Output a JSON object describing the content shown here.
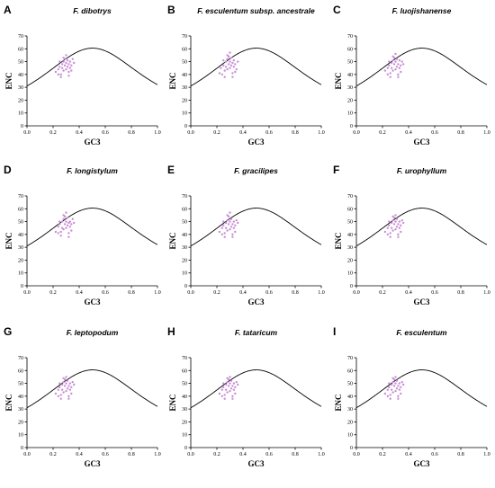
{
  "figure": {
    "point_color": "#c98fd6",
    "curve_color": "#000000"
  },
  "chart_data": [
    {
      "type": "scatter",
      "panel": "A",
      "title": "F. dibotrys",
      "xlabel": "GC3",
      "ylabel": "ENC",
      "xlim": [
        0.0,
        1.0
      ],
      "ylim": [
        0,
        70
      ],
      "xticks": [
        "0.0",
        "0.2",
        "0.4",
        "0.6",
        "0.8",
        "1.0"
      ],
      "yticks": [
        "0",
        "10",
        "20",
        "30",
        "40",
        "50",
        "60",
        "70"
      ],
      "expected_curve": "ENC = 2 + GC3 + 29/(GC3^2 + (1-GC3)^2)",
      "points": [
        [
          0.22,
          42
        ],
        [
          0.24,
          44
        ],
        [
          0.25,
          46
        ],
        [
          0.26,
          40
        ],
        [
          0.27,
          48
        ],
        [
          0.27,
          45
        ],
        [
          0.28,
          50
        ],
        [
          0.28,
          43
        ],
        [
          0.29,
          47
        ],
        [
          0.29,
          52
        ],
        [
          0.3,
          44
        ],
        [
          0.3,
          49
        ],
        [
          0.31,
          46
        ],
        [
          0.31,
          51
        ],
        [
          0.32,
          48
        ],
        [
          0.32,
          42
        ],
        [
          0.33,
          50
        ],
        [
          0.33,
          45
        ],
        [
          0.34,
          47
        ],
        [
          0.35,
          52
        ],
        [
          0.26,
          38
        ],
        [
          0.3,
          55
        ],
        [
          0.32,
          39
        ],
        [
          0.24,
          40
        ],
        [
          0.36,
          49
        ],
        [
          0.28,
          53
        ],
        [
          0.25,
          50
        ],
        [
          0.34,
          43
        ]
      ]
    },
    {
      "type": "scatter",
      "panel": "B",
      "title": "F. esculentum subsp. ancestrale",
      "xlabel": "GC3",
      "ylabel": "ENC",
      "xlim": [
        0.0,
        1.0
      ],
      "ylim": [
        0,
        70
      ],
      "xticks": [
        "0.0",
        "0.2",
        "0.4",
        "0.6",
        "0.8",
        "1.0"
      ],
      "yticks": [
        "0",
        "10",
        "20",
        "30",
        "40",
        "50",
        "60",
        "70"
      ],
      "expected_curve": "ENC = 2 + GC3 + 29/(GC3^2 + (1-GC3)^2)",
      "points": [
        [
          0.22,
          41
        ],
        [
          0.23,
          45
        ],
        [
          0.25,
          47
        ],
        [
          0.26,
          43
        ],
        [
          0.27,
          50
        ],
        [
          0.27,
          46
        ],
        [
          0.28,
          52
        ],
        [
          0.28,
          44
        ],
        [
          0.29,
          48
        ],
        [
          0.29,
          54
        ],
        [
          0.3,
          45
        ],
        [
          0.3,
          50
        ],
        [
          0.31,
          47
        ],
        [
          0.31,
          53
        ],
        [
          0.32,
          49
        ],
        [
          0.32,
          41
        ],
        [
          0.33,
          51
        ],
        [
          0.33,
          46
        ],
        [
          0.34,
          48
        ],
        [
          0.35,
          44
        ],
        [
          0.26,
          38
        ],
        [
          0.3,
          57
        ],
        [
          0.32,
          38
        ],
        [
          0.24,
          40
        ],
        [
          0.36,
          50
        ],
        [
          0.28,
          55
        ],
        [
          0.25,
          51
        ],
        [
          0.34,
          42
        ]
      ]
    },
    {
      "type": "scatter",
      "panel": "C",
      "title": "F. luojishanense",
      "xlabel": "GC3",
      "ylabel": "ENC",
      "xlim": [
        0.0,
        1.0
      ],
      "ylim": [
        0,
        70
      ],
      "xticks": [
        "0.0",
        "0.2",
        "0.4",
        "0.6",
        "0.8",
        "1.0"
      ],
      "yticks": [
        "0",
        "10",
        "20",
        "30",
        "40",
        "50",
        "60",
        "70"
      ],
      "expected_curve": "ENC = 2 + GC3 + 29/(GC3^2 + (1-GC3)^2)",
      "points": [
        [
          0.22,
          43
        ],
        [
          0.24,
          45
        ],
        [
          0.25,
          47
        ],
        [
          0.26,
          41
        ],
        [
          0.27,
          49
        ],
        [
          0.27,
          45
        ],
        [
          0.28,
          51
        ],
        [
          0.28,
          43
        ],
        [
          0.29,
          48
        ],
        [
          0.29,
          53
        ],
        [
          0.3,
          44
        ],
        [
          0.3,
          50
        ],
        [
          0.31,
          46
        ],
        [
          0.31,
          52
        ],
        [
          0.32,
          48
        ],
        [
          0.32,
          40
        ],
        [
          0.33,
          51
        ],
        [
          0.33,
          45
        ],
        [
          0.34,
          47
        ],
        [
          0.35,
          50
        ],
        [
          0.26,
          38
        ],
        [
          0.3,
          56
        ],
        [
          0.32,
          38
        ],
        [
          0.24,
          40
        ],
        [
          0.36,
          48
        ],
        [
          0.28,
          54
        ],
        [
          0.25,
          50
        ],
        [
          0.34,
          42
        ]
      ]
    },
    {
      "type": "scatter",
      "panel": "D",
      "title": "F. longistylum",
      "xlabel": "GC3",
      "ylabel": "ENC",
      "xlim": [
        0.0,
        1.0
      ],
      "ylim": [
        0,
        70
      ],
      "xticks": [
        "0.0",
        "0.2",
        "0.4",
        "0.6",
        "0.8",
        "1.0"
      ],
      "yticks": [
        "0",
        "10",
        "20",
        "30",
        "40",
        "50",
        "60",
        "70"
      ],
      "expected_curve": "ENC = 2 + GC3 + 29/(GC3^2 + (1-GC3)^2)",
      "points": [
        [
          0.22,
          42
        ],
        [
          0.24,
          46
        ],
        [
          0.25,
          48
        ],
        [
          0.26,
          42
        ],
        [
          0.27,
          50
        ],
        [
          0.27,
          45
        ],
        [
          0.28,
          52
        ],
        [
          0.28,
          44
        ],
        [
          0.29,
          48
        ],
        [
          0.29,
          54
        ],
        [
          0.3,
          45
        ],
        [
          0.3,
          50
        ],
        [
          0.31,
          47
        ],
        [
          0.31,
          53
        ],
        [
          0.32,
          49
        ],
        [
          0.32,
          41
        ],
        [
          0.33,
          50
        ],
        [
          0.33,
          46
        ],
        [
          0.34,
          48
        ],
        [
          0.35,
          52
        ],
        [
          0.26,
          39
        ],
        [
          0.3,
          57
        ],
        [
          0.32,
          38
        ],
        [
          0.24,
          41
        ],
        [
          0.36,
          49
        ],
        [
          0.28,
          55
        ],
        [
          0.25,
          50
        ],
        [
          0.34,
          43
        ]
      ]
    },
    {
      "type": "scatter",
      "panel": "E",
      "title": "F. gracilipes",
      "xlabel": "GC3",
      "ylabel": "ENC",
      "xlim": [
        0.0,
        1.0
      ],
      "ylim": [
        0,
        70
      ],
      "xticks": [
        "0.0",
        "0.2",
        "0.4",
        "0.6",
        "0.8",
        "1.0"
      ],
      "yticks": [
        "0",
        "10",
        "20",
        "30",
        "40",
        "50",
        "60",
        "70"
      ],
      "expected_curve": "ENC = 2 + GC3 + 29/(GC3^2 + (1-GC3)^2)",
      "points": [
        [
          0.22,
          42
        ],
        [
          0.24,
          45
        ],
        [
          0.25,
          47
        ],
        [
          0.26,
          41
        ],
        [
          0.27,
          49
        ],
        [
          0.27,
          45
        ],
        [
          0.28,
          51
        ],
        [
          0.28,
          43
        ],
        [
          0.29,
          48
        ],
        [
          0.29,
          54
        ],
        [
          0.3,
          44
        ],
        [
          0.3,
          50
        ],
        [
          0.31,
          46
        ],
        [
          0.31,
          52
        ],
        [
          0.32,
          48
        ],
        [
          0.32,
          40
        ],
        [
          0.33,
          50
        ],
        [
          0.33,
          45
        ],
        [
          0.34,
          47
        ],
        [
          0.35,
          51
        ],
        [
          0.26,
          38
        ],
        [
          0.3,
          57
        ],
        [
          0.32,
          38
        ],
        [
          0.24,
          40
        ],
        [
          0.36,
          49
        ],
        [
          0.28,
          55
        ],
        [
          0.25,
          50
        ],
        [
          0.34,
          42
        ]
      ]
    },
    {
      "type": "scatter",
      "panel": "F",
      "title": "F. urophyllum",
      "xlabel": "GC3",
      "ylabel": "ENC",
      "xlim": [
        0.0,
        1.0
      ],
      "ylim": [
        0,
        70
      ],
      "xticks": [
        "0.0",
        "0.2",
        "0.4",
        "0.6",
        "0.8",
        "1.0"
      ],
      "yticks": [
        "0",
        "10",
        "20",
        "30",
        "40",
        "50",
        "60",
        "70"
      ],
      "expected_curve": "ENC = 2 + GC3 + 29/(GC3^2 + (1-GC3)^2)",
      "points": [
        [
          0.22,
          42
        ],
        [
          0.24,
          45
        ],
        [
          0.25,
          47
        ],
        [
          0.26,
          41
        ],
        [
          0.27,
          49
        ],
        [
          0.27,
          45
        ],
        [
          0.28,
          51
        ],
        [
          0.28,
          43
        ],
        [
          0.29,
          48
        ],
        [
          0.29,
          53
        ],
        [
          0.3,
          44
        ],
        [
          0.3,
          50
        ],
        [
          0.31,
          46
        ],
        [
          0.31,
          52
        ],
        [
          0.32,
          48
        ],
        [
          0.32,
          40
        ],
        [
          0.33,
          50
        ],
        [
          0.33,
          45
        ],
        [
          0.34,
          47
        ],
        [
          0.35,
          51
        ],
        [
          0.26,
          38
        ],
        [
          0.3,
          55
        ],
        [
          0.32,
          38
        ],
        [
          0.24,
          40
        ],
        [
          0.36,
          49
        ],
        [
          0.28,
          54
        ],
        [
          0.25,
          50
        ],
        [
          0.34,
          42
        ]
      ]
    },
    {
      "type": "scatter",
      "panel": "G",
      "title": "F. leptopodum",
      "xlabel": "GC3",
      "ylabel": "ENC",
      "xlim": [
        0.0,
        1.0
      ],
      "ylim": [
        0,
        70
      ],
      "xticks": [
        "0.0",
        "0.2",
        "0.4",
        "0.6",
        "0.8",
        "1.0"
      ],
      "yticks": [
        "0",
        "10",
        "20",
        "30",
        "40",
        "50",
        "60",
        "70"
      ],
      "expected_curve": "ENC = 2 + GC3 + 29/(GC3^2 + (1-GC3)^2)",
      "points": [
        [
          0.22,
          42
        ],
        [
          0.24,
          45
        ],
        [
          0.25,
          47
        ],
        [
          0.26,
          41
        ],
        [
          0.27,
          49
        ],
        [
          0.27,
          45
        ],
        [
          0.28,
          51
        ],
        [
          0.28,
          43
        ],
        [
          0.29,
          48
        ],
        [
          0.29,
          53
        ],
        [
          0.3,
          44
        ],
        [
          0.3,
          50
        ],
        [
          0.31,
          46
        ],
        [
          0.31,
          52
        ],
        [
          0.32,
          48
        ],
        [
          0.32,
          40
        ],
        [
          0.33,
          50
        ],
        [
          0.33,
          45
        ],
        [
          0.34,
          47
        ],
        [
          0.35,
          51
        ],
        [
          0.26,
          38
        ],
        [
          0.3,
          55
        ],
        [
          0.32,
          38
        ],
        [
          0.24,
          40
        ],
        [
          0.36,
          49
        ],
        [
          0.28,
          54
        ],
        [
          0.25,
          50
        ],
        [
          0.34,
          42
        ]
      ]
    },
    {
      "type": "scatter",
      "panel": "H",
      "title": "F. tataricum",
      "xlabel": "GC3",
      "ylabel": "ENC",
      "xlim": [
        0.0,
        1.0
      ],
      "ylim": [
        0,
        70
      ],
      "xticks": [
        "0.0",
        "0.2",
        "0.4",
        "0.6",
        "0.8",
        "1.0"
      ],
      "yticks": [
        "0",
        "10",
        "20",
        "30",
        "40",
        "50",
        "60",
        "70"
      ],
      "expected_curve": "ENC = 2 + GC3 + 29/(GC3^2 + (1-GC3)^2)",
      "points": [
        [
          0.22,
          42
        ],
        [
          0.24,
          45
        ],
        [
          0.25,
          47
        ],
        [
          0.26,
          41
        ],
        [
          0.27,
          49
        ],
        [
          0.27,
          45
        ],
        [
          0.28,
          51
        ],
        [
          0.28,
          43
        ],
        [
          0.29,
          48
        ],
        [
          0.29,
          53
        ],
        [
          0.3,
          44
        ],
        [
          0.3,
          50
        ],
        [
          0.31,
          46
        ],
        [
          0.31,
          52
        ],
        [
          0.32,
          48
        ],
        [
          0.32,
          40
        ],
        [
          0.33,
          50
        ],
        [
          0.33,
          45
        ],
        [
          0.34,
          47
        ],
        [
          0.35,
          51
        ],
        [
          0.26,
          38
        ],
        [
          0.3,
          55
        ],
        [
          0.32,
          38
        ],
        [
          0.24,
          40
        ],
        [
          0.36,
          49
        ],
        [
          0.28,
          54
        ],
        [
          0.25,
          50
        ],
        [
          0.34,
          42
        ]
      ]
    },
    {
      "type": "scatter",
      "panel": "I",
      "title": "F. esculentum",
      "xlabel": "GC3",
      "ylabel": "ENC",
      "xlim": [
        0.0,
        1.0
      ],
      "ylim": [
        0,
        70
      ],
      "xticks": [
        "0.0",
        "0.2",
        "0.4",
        "0.6",
        "0.8",
        "1.0"
      ],
      "yticks": [
        "0",
        "10",
        "20",
        "30",
        "40",
        "50",
        "60",
        "70"
      ],
      "expected_curve": "ENC = 2 + GC3 + 29/(GC3^2 + (1-GC3)^2)",
      "points": [
        [
          0.22,
          42
        ],
        [
          0.24,
          45
        ],
        [
          0.25,
          47
        ],
        [
          0.26,
          41
        ],
        [
          0.27,
          49
        ],
        [
          0.27,
          45
        ],
        [
          0.28,
          51
        ],
        [
          0.28,
          43
        ],
        [
          0.29,
          48
        ],
        [
          0.29,
          53
        ],
        [
          0.3,
          44
        ],
        [
          0.3,
          50
        ],
        [
          0.31,
          46
        ],
        [
          0.31,
          52
        ],
        [
          0.32,
          48
        ],
        [
          0.32,
          40
        ],
        [
          0.33,
          50
        ],
        [
          0.33,
          45
        ],
        [
          0.34,
          47
        ],
        [
          0.35,
          51
        ],
        [
          0.26,
          38
        ],
        [
          0.3,
          55
        ],
        [
          0.32,
          38
        ],
        [
          0.24,
          40
        ],
        [
          0.36,
          49
        ],
        [
          0.28,
          54
        ],
        [
          0.25,
          50
        ],
        [
          0.34,
          42
        ]
      ]
    }
  ]
}
